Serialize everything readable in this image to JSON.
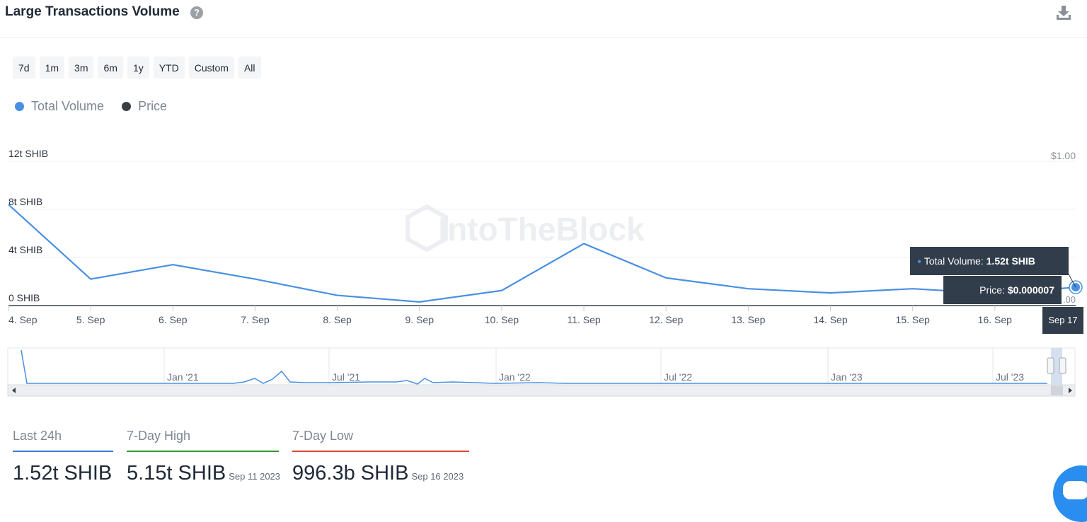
{
  "header": {
    "title": "Large Transactions Volume",
    "help_icon": "?"
  },
  "range_buttons": [
    "7d",
    "1m",
    "3m",
    "6m",
    "1y",
    "YTD",
    "Custom",
    "All"
  ],
  "legend": [
    {
      "label": "Total Volume",
      "color": "#4a90e2"
    },
    {
      "label": "Price",
      "color": "#3a3f45"
    }
  ],
  "watermark": "IntoTheBlock",
  "chart_data": {
    "type": "line",
    "x": [
      "4. Sep",
      "5. Sep",
      "6. Sep",
      "7. Sep",
      "8. Sep",
      "9. Sep",
      "10. Sep",
      "11. Sep",
      "12. Sep",
      "13. Sep",
      "14. Sep",
      "15. Sep",
      "16. Sep",
      "Sep 17"
    ],
    "series": [
      {
        "name": "Total Volume",
        "unit": "t SHIB",
        "color": "#4a90e2",
        "values": [
          8.4,
          2.2,
          3.4,
          2.2,
          0.85,
          0.3,
          1.25,
          5.15,
          2.3,
          1.4,
          1.05,
          1.4,
          0.996,
          1.52
        ]
      }
    ],
    "x_tick_labels": [
      "4. Sep",
      "5. Sep",
      "6. Sep",
      "7. Sep",
      "8. Sep",
      "9. Sep",
      "10. Sep",
      "11. Sep",
      "12. Sep",
      "13. Sep",
      "14. Sep",
      "15. Sep",
      "16. Sep"
    ],
    "y_ticks": [
      {
        "value": 0,
        "label": "0 SHIB"
      },
      {
        "value": 4,
        "label": "4t SHIB"
      },
      {
        "value": 8,
        "label": "8t SHIB"
      },
      {
        "value": 12,
        "label": "12t SHIB"
      }
    ],
    "ylim": [
      0,
      12
    ],
    "right_axis_label": "$1.00",
    "right_axis_partial_label": ".00",
    "grid": true,
    "tooltip": {
      "volume_label": "Total Volume:",
      "volume_value": "1.52t SHIB",
      "price_label": "Price:",
      "price_value": "$0.000007",
      "date": "Sep 17"
    },
    "navigator": {
      "labels": [
        "Jan '21",
        "Jul '21",
        "Jan '22",
        "Jul '22",
        "Jan '23",
        "Jul '23"
      ]
    }
  },
  "stats": [
    {
      "label": "Last 24h",
      "value": "1.52t SHIB",
      "date": "",
      "color": "#3a7bd5"
    },
    {
      "label": "7-Day High",
      "value": "5.15t SHIB",
      "date": "Sep 11 2023",
      "color": "#2e9c3a"
    },
    {
      "label": "7-Day Low",
      "value": "996.3b SHIB",
      "date": "Sep 16 2023",
      "color": "#d9483b"
    }
  ]
}
